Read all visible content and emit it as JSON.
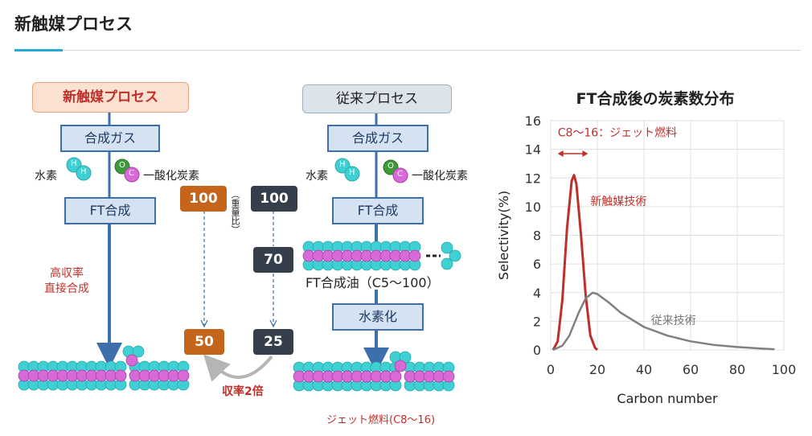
{
  "page": {
    "title": "新触媒プロセス"
  },
  "diagram": {
    "new_process": {
      "header": "新触媒プロセス",
      "step_syngas": "合成ガス",
      "hydrogen_label": "水素",
      "co_label": "一酸化炭素",
      "step_ft": "FT合成",
      "note": "高収率\n直接合成"
    },
    "old_process": {
      "header": "従来プロセス",
      "step_syngas": "合成ガス",
      "hydrogen_label": "水素",
      "co_label": "一酸化炭素",
      "step_ft": "FT合成",
      "ft_oil": "FT合成油（C5～100）",
      "step_hydro": "水素化",
      "product": "ジェット燃料(C8～16)"
    },
    "atom_labels": {
      "hydrogen": "H",
      "oxygen": "O",
      "carbon": "C"
    },
    "comparison": {
      "weight_ratio_note": "（重量比）",
      "new_values": {
        "start": "100",
        "end": "50"
      },
      "old_values": {
        "start": "100",
        "middle": "70",
        "end": "25"
      },
      "yield_label": "収率2倍"
    },
    "colors": {
      "new_accent": "#c5651b",
      "old_accent": "#353f4c",
      "arrow": "#3d6fad",
      "highlight_red": "#c0302a",
      "hydrogen_atom": "#3fd0d4",
      "carbon_atom": "#d86ad8",
      "oxygen_atom": "#3f9a3a"
    }
  },
  "chart_data": {
    "type": "line",
    "title": "FT合成後の炭素数分布",
    "xlabel": "Carbon number",
    "ylabel": "Selectivity(%)",
    "xlim": [
      0,
      100
    ],
    "ylim": [
      0,
      16
    ],
    "xticks": [
      "0",
      "20",
      "40",
      "60",
      "80",
      "100"
    ],
    "yticks": [
      "0",
      "2",
      "4",
      "6",
      "8",
      "10",
      "12",
      "14",
      "16"
    ],
    "grid": true,
    "annotation": {
      "text": "C8～16：ジェット燃料",
      "range": [
        3,
        16
      ]
    },
    "series": [
      {
        "name": "新触媒技術",
        "color": "#c0302a",
        "x": [
          1,
          3,
          5,
          7,
          9,
          10,
          11,
          13,
          15,
          17,
          19,
          20
        ],
        "y": [
          0,
          0.6,
          3.5,
          8.5,
          11.8,
          12.2,
          11.6,
          8.0,
          3.8,
          1.0,
          0.15,
          0
        ]
      },
      {
        "name": "従来技術",
        "color": "#808080",
        "x": [
          1,
          5,
          8,
          12,
          15,
          18,
          20,
          25,
          30,
          40,
          50,
          60,
          70,
          80,
          90,
          96
        ],
        "y": [
          0,
          0.3,
          1.0,
          2.6,
          3.6,
          4.0,
          3.9,
          3.3,
          2.6,
          1.6,
          1.0,
          0.6,
          0.35,
          0.2,
          0.1,
          0.05
        ]
      }
    ]
  }
}
